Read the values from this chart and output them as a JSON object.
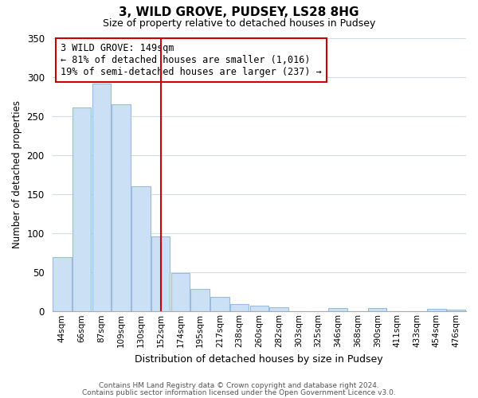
{
  "title": "3, WILD GROVE, PUDSEY, LS28 8HG",
  "subtitle": "Size of property relative to detached houses in Pudsey",
  "xlabel": "Distribution of detached houses by size in Pudsey",
  "ylabel": "Number of detached properties",
  "bar_labels": [
    "44sqm",
    "66sqm",
    "87sqm",
    "109sqm",
    "130sqm",
    "152sqm",
    "174sqm",
    "195sqm",
    "217sqm",
    "238sqm",
    "260sqm",
    "282sqm",
    "303sqm",
    "325sqm",
    "346sqm",
    "368sqm",
    "390sqm",
    "411sqm",
    "433sqm",
    "454sqm",
    "476sqm"
  ],
  "bar_values": [
    70,
    261,
    291,
    265,
    160,
    96,
    49,
    29,
    19,
    9,
    7,
    5,
    0,
    0,
    4,
    0,
    4,
    0,
    0,
    3,
    2
  ],
  "bar_color": "#cce0f5",
  "bar_edge_color": "#99bbdd",
  "vline_x": 5,
  "vline_color": "#cc0000",
  "ylim": [
    0,
    350
  ],
  "yticks": [
    0,
    50,
    100,
    150,
    200,
    250,
    300,
    350
  ],
  "annotation_line1": "3 WILD GROVE: 149sqm",
  "annotation_line2": "← 81% of detached houses are smaller (1,016)",
  "annotation_line3": "19% of semi-detached houses are larger (237) →",
  "annotation_box_edgecolor": "#cc0000",
  "footer_line1": "Contains HM Land Registry data © Crown copyright and database right 2024.",
  "footer_line2": "Contains public sector information licensed under the Open Government Licence v3.0.",
  "background_color": "#ffffff",
  "grid_color": "#d0dce8"
}
